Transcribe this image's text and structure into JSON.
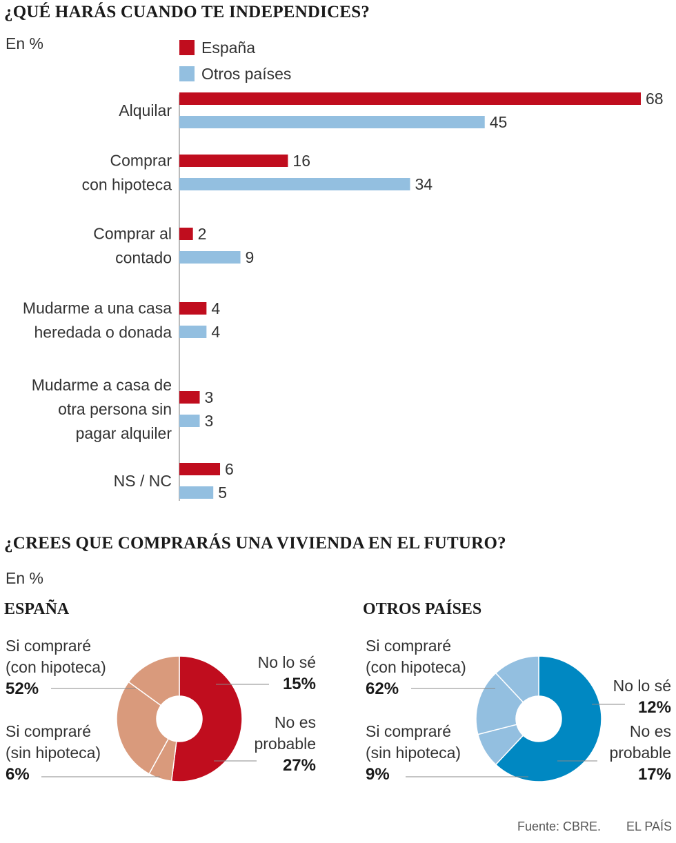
{
  "chart1": {
    "title": "¿QUÉ HARÁS CUANDO TE INDEPENDICES?",
    "unit": "En %",
    "legend": [
      {
        "label": "España",
        "color": "#c00d1e"
      },
      {
        "label": "Otros países",
        "color": "#93bfe0"
      }
    ]
  },
  "chart2": {
    "title": "¿CREES QUE COMPRARÁS UNA VIVIENDA EN EL FUTURO?",
    "unit": "En %",
    "espana": {
      "heading": "ESPAÑA",
      "labels": [
        {
          "line1": "Si compraré",
          "line2": "(con hipoteca)",
          "pct": "52%"
        },
        {
          "line1": "Si compraré",
          "line2": "(sin hipoteca)",
          "pct": "6%"
        },
        {
          "line1": "No lo sé",
          "pct": "15%"
        },
        {
          "line1": "No es",
          "line2": "probable",
          "pct": "27%"
        }
      ]
    },
    "otros": {
      "heading": "OTROS PAÍSES",
      "labels": [
        {
          "line1": "Si compraré",
          "line2": "(con hipoteca)",
          "pct": "62%"
        },
        {
          "line1": "Si compraré",
          "line2": "(sin hipoteca)",
          "pct": "9%"
        },
        {
          "line1": "No lo sé",
          "pct": "12%"
        },
        {
          "line1": "No es",
          "line2": "probable",
          "pct": "17%"
        }
      ]
    }
  },
  "footer": {
    "source": "Fuente: CBRE.",
    "brand": "EL PAÍS"
  },
  "chart_data": [
    {
      "type": "bar",
      "orientation": "horizontal",
      "title": "¿QUÉ HARÁS CUANDO TE INDEPENDICES?",
      "ylabel": "En %",
      "categories": [
        [
          "Alquilar"
        ],
        [
          "Comprar",
          "con hipoteca"
        ],
        [
          "Comprar al",
          "contado"
        ],
        [
          "Mudarme a una casa",
          "heredada o donada"
        ],
        [
          "Mudarme a casa de",
          "otra persona sin",
          "pagar alquiler"
        ],
        [
          "NS / NC"
        ]
      ],
      "series": [
        {
          "name": "España",
          "color": "#c00d1e",
          "values": [
            68,
            16,
            2,
            4,
            3,
            6
          ]
        },
        {
          "name": "Otros países",
          "color": "#93bfe0",
          "values": [
            45,
            34,
            9,
            4,
            3,
            5
          ]
        }
      ],
      "xlim": [
        0,
        68
      ],
      "legend": "top-left",
      "grid": false
    },
    {
      "type": "pie",
      "donut": true,
      "title": "ESPAÑA",
      "categories": [
        "Si compraré (con hipoteca)",
        "Si compraré (sin hipoteca)",
        "No es probable",
        "No lo sé"
      ],
      "values": [
        52,
        6,
        27,
        15
      ],
      "colors": [
        "#c00d1e",
        "#d99a7c",
        "#d99a7c",
        "#d99a7c"
      ]
    },
    {
      "type": "pie",
      "donut": true,
      "title": "OTROS PAÍSES",
      "categories": [
        "Si compraré (con hipoteca)",
        "Si compraré (sin hipoteca)",
        "No es probable",
        "No lo sé"
      ],
      "values": [
        62,
        9,
        17,
        12
      ],
      "colors": [
        "#0088c2",
        "#93bfe0",
        "#93bfe0",
        "#93bfe0"
      ]
    }
  ]
}
